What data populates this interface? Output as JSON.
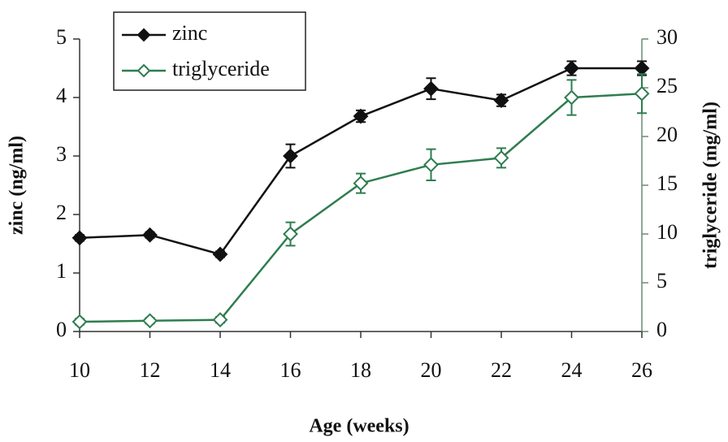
{
  "chart_data": {
    "type": "line",
    "x": [
      10,
      12,
      14,
      16,
      18,
      20,
      22,
      24,
      26
    ],
    "xlabel": "Age (weeks)",
    "ylabel": "zinc (ng/ml)",
    "y2label": "triglyceride (mg/ml)",
    "xlim": [
      10,
      26
    ],
    "xticks": [
      10,
      12,
      14,
      16,
      18,
      20,
      22,
      24,
      26
    ],
    "ylim": [
      0,
      5
    ],
    "yticks": [
      0,
      1,
      2,
      3,
      4,
      5
    ],
    "y2lim": [
      0,
      30
    ],
    "y2ticks": [
      0,
      5,
      10,
      15,
      20,
      25,
      30
    ],
    "legend": "upper left",
    "series": [
      {
        "name": "zinc",
        "color": "#111111",
        "marker": "filled-diamond",
        "values": [
          1.6,
          1.65,
          1.32,
          3.0,
          3.68,
          4.15,
          3.95,
          4.5,
          4.5
        ],
        "errors": [
          0.05,
          0.05,
          0.05,
          0.2,
          0.1,
          0.18,
          0.1,
          0.12,
          0.12
        ]
      },
      {
        "name": "triglyceride",
        "color": "#2e7d4f",
        "marker": "open-diamond",
        "axis": "y2",
        "values": [
          1.0,
          1.1,
          1.2,
          10.0,
          15.2,
          17.1,
          17.8,
          24.0,
          24.4
        ],
        "errors": [
          0.3,
          0.3,
          0.3,
          1.2,
          1.0,
          1.6,
          1.0,
          1.8,
          2.0
        ]
      }
    ]
  }
}
